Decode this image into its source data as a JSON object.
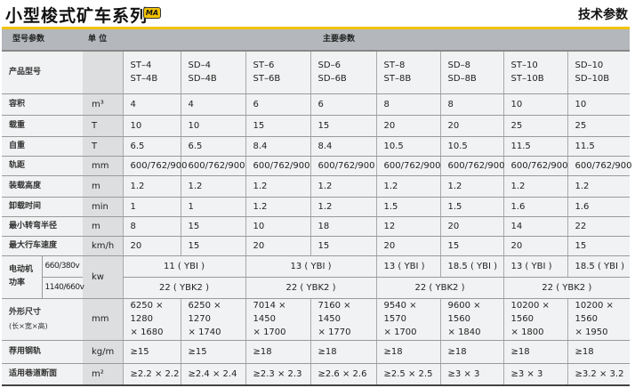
{
  "title": "小型梭式矿车系列",
  "logo_text": "MA",
  "section": "技术参数",
  "colors": {
    "accent": "#f2c200",
    "header_bg": "#b4b8bc",
    "unit_col_bg": "#dcdee0"
  },
  "header": {
    "param": "型号参数",
    "unit": "单 位",
    "main": "主要参数"
  },
  "rows": [
    {
      "label": "产品型号",
      "unit": "",
      "values": [
        "ST–4\nST–4B",
        "SD–4\nSD–4B",
        "ST–6\nST–6B",
        "SD–6\nSD–6B",
        "ST–8\nST–8B",
        "SD–8\nSD–8B",
        "ST–10\nST–10B",
        "SD–10\nSD–10B"
      ]
    },
    {
      "label": "容积",
      "unit": "m³",
      "values": [
        "4",
        "4",
        "6",
        "6",
        "8",
        "8",
        "10",
        "10"
      ]
    },
    {
      "label": "载重",
      "unit": "T",
      "values": [
        "10",
        "10",
        "15",
        "15",
        "20",
        "20",
        "25",
        "25"
      ]
    },
    {
      "label": "自重",
      "unit": "T",
      "values": [
        "6.5",
        "6.5",
        "8.4",
        "8.4",
        "10.5",
        "10.5",
        "11.5",
        "11.5"
      ]
    },
    {
      "label": "轨距",
      "unit": "mm",
      "values": [
        "600/762/900",
        "600/762/900",
        "600/762/900",
        "600/762/900",
        "600/762/900",
        "600/762/900",
        "600/762/900",
        "600/762/900"
      ]
    },
    {
      "label": "装载高度",
      "unit": "m",
      "values": [
        "1.2",
        "1.2",
        "1.2",
        "1.2",
        "1.2",
        "1.2",
        "1.2",
        "1.2"
      ]
    },
    {
      "label": "卸载时间",
      "unit": "min",
      "values": [
        "1",
        "1",
        "1.2",
        "1.2",
        "1.5",
        "1.5",
        "1.6",
        "1.6"
      ]
    },
    {
      "label": "最小转弯半径",
      "unit": "m",
      "values": [
        "8",
        "15",
        "10",
        "18",
        "12",
        "20",
        "14",
        "22"
      ]
    },
    {
      "label": "最大行车速度",
      "unit": "km/h",
      "values": [
        "20",
        "15",
        "20",
        "15",
        "20",
        "15",
        "20",
        "15"
      ]
    }
  ],
  "motor": {
    "label": "电动机\n功率",
    "unit": "kw",
    "v1": "660/380v",
    "v2": "1140/660v",
    "row1": [
      {
        "text": "11 ( YBI )",
        "span": 2
      },
      {
        "text": "13 ( YBI )",
        "span": 2
      },
      {
        "text": "13 ( YBI )",
        "span": 1
      },
      {
        "text": "18.5 ( YBI )",
        "span": 1
      },
      {
        "text": "13 ( YBI )",
        "span": 1
      },
      {
        "text": "18.5 ( YBI )",
        "span": 1
      }
    ],
    "row2": [
      {
        "text": "22 ( YBK2 )",
        "span": 2
      },
      {
        "text": "22 ( YBK2 )",
        "span": 2
      },
      {
        "text": "22 ( YBK2 )",
        "span": 2
      },
      {
        "text": "22 ( YBK2 )",
        "span": 2
      }
    ]
  },
  "rows2": [
    {
      "label": "外形尺寸",
      "sublabel": "(长×宽×高)",
      "unit": "mm",
      "values": [
        "6250 × 1280\n× 1680",
        "6250 × 1270\n× 1740",
        "7014 × 1450\n× 1700",
        "7160 × 1450\n× 1770",
        "9540 × 1570\n× 1700",
        "9600 × 1560\n× 1840",
        "10200 × 1560\n× 1800",
        "10200 × 1560\n× 1950"
      ]
    },
    {
      "label": "荐用钢轨",
      "unit": "kg/m",
      "values": [
        "≥15",
        "≥15",
        "≥18",
        "≥18",
        "≥18",
        "≥18",
        "≥18",
        "≥18"
      ]
    },
    {
      "label": "适用巷道断面",
      "unit": "m²",
      "values": [
        "≥2.2 × 2.2",
        "≥2.4 × 2.4",
        "≥2.3 × 2.3",
        "≥2.6 × 2.6",
        "≥2.5 × 2.5",
        "≥3 × 3",
        "≥3 × 3",
        "≥3.2 × 3.2"
      ]
    }
  ]
}
